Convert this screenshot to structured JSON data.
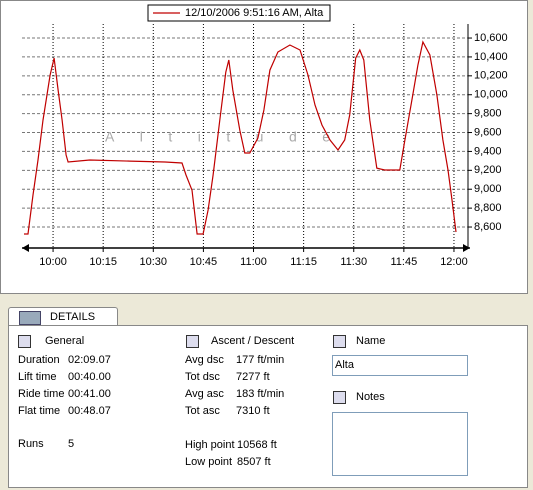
{
  "chart_data": {
    "type": "line",
    "series": [
      {
        "name": "12/10/2006 9:51:16 AM, Alta",
        "color": "#c00000",
        "values": [
          8526,
          8526,
          8939,
          9309,
          9732,
          10208,
          10388,
          10050,
          9732,
          9362,
          9288,
          9309,
          9298,
          9288,
          9277,
          9150,
          8991,
          8526,
          8526,
          8780,
          9150,
          9732,
          10240,
          10367,
          10050,
          9626,
          9383,
          9383,
          9542,
          9838,
          10261,
          10452,
          10526,
          10473,
          10208,
          9891,
          9679,
          9521,
          9415,
          9521,
          9785,
          10388,
          10473,
          10367,
          9732,
          9224,
          9203,
          9203,
          9521,
          9944,
          10314,
          10558,
          10420,
          9997,
          9521,
          9203,
          8886,
          8547
        ]
      }
    ],
    "x": [
      591.3,
      592.5,
      594.0,
      595.5,
      597.0,
      599.1,
      600.3,
      601.5,
      602.7,
      603.9,
      604.5,
      611.0,
      623.0,
      633.5,
      638.6,
      639.8,
      641.6,
      643.1,
      644.9,
      646.4,
      647.9,
      649.9,
      651.7,
      652.6,
      653.8,
      655.9,
      657.4,
      658.9,
      661.3,
      663.1,
      664.9,
      667.3,
      670.9,
      673.9,
      676.3,
      678.4,
      680.5,
      682.9,
      685.3,
      687.3,
      688.8,
      690.6,
      691.8,
      693.0,
      694.8,
      696.9,
      699.3,
      703.8,
      705.3,
      707.4,
      709.2,
      710.7,
      712.8,
      714.9,
      716.7,
      718.2,
      719.4,
      720.6
    ],
    "xlim": [
      590.7,
      724.8
    ],
    "xticks": [
      {
        "value": 600,
        "label": "10:00"
      },
      {
        "value": 615,
        "label": "10:15"
      },
      {
        "value": 630,
        "label": "10:30"
      },
      {
        "value": 645,
        "label": "10:45"
      },
      {
        "value": 660,
        "label": "11:00"
      },
      {
        "value": 675,
        "label": "11:15"
      },
      {
        "value": 690,
        "label": "11:30"
      },
      {
        "value": 705,
        "label": "11:45"
      },
      {
        "value": 720,
        "label": "12:00"
      }
    ],
    "ylim": [
      8378,
      10685
    ],
    "yticks": [
      {
        "value": 8600,
        "label": "8,600"
      },
      {
        "value": 8800,
        "label": "8,800"
      },
      {
        "value": 9000,
        "label": "9,000"
      },
      {
        "value": 9200,
        "label": "9,200"
      },
      {
        "value": 9400,
        "label": "9,400"
      },
      {
        "value": 9600,
        "label": "9,600"
      },
      {
        "value": 9800,
        "label": "9,800"
      },
      {
        "value": 10000,
        "label": "10,000"
      },
      {
        "value": 10200,
        "label": "10,200"
      },
      {
        "value": 10400,
        "label": "10,400"
      },
      {
        "value": 10600,
        "label": "10,600"
      }
    ],
    "watermark": "Altitude",
    "grid": true,
    "legend_position": "top"
  },
  "details": {
    "tab": "DETAILS",
    "general": {
      "title": "General",
      "rows": [
        {
          "label": "Duration",
          "value": "02:09.07"
        },
        {
          "label": "Lift time",
          "value": "00:40.00"
        },
        {
          "label": "Ride time",
          "value": "00:41.00"
        },
        {
          "label": "Flat time",
          "value": "00:48.07"
        }
      ],
      "runs": {
        "label": "Runs",
        "value": "5"
      }
    },
    "ascent": {
      "title": "Ascent / Descent",
      "rows": [
        {
          "label": "Avg dsc",
          "value": "177 ft/min"
        },
        {
          "label": "Tot dsc",
          "value": "7277 ft"
        },
        {
          "label": "Avg asc",
          "value": "183 ft/min"
        },
        {
          "label": "Tot asc",
          "value": "7310 ft"
        }
      ],
      "points": [
        {
          "label": "High point",
          "value": "10568 ft"
        },
        {
          "label": "Low point",
          "value": "8507 ft"
        }
      ]
    },
    "name": {
      "title": "Name",
      "value": "Alta"
    },
    "notes": {
      "title": "Notes"
    }
  }
}
